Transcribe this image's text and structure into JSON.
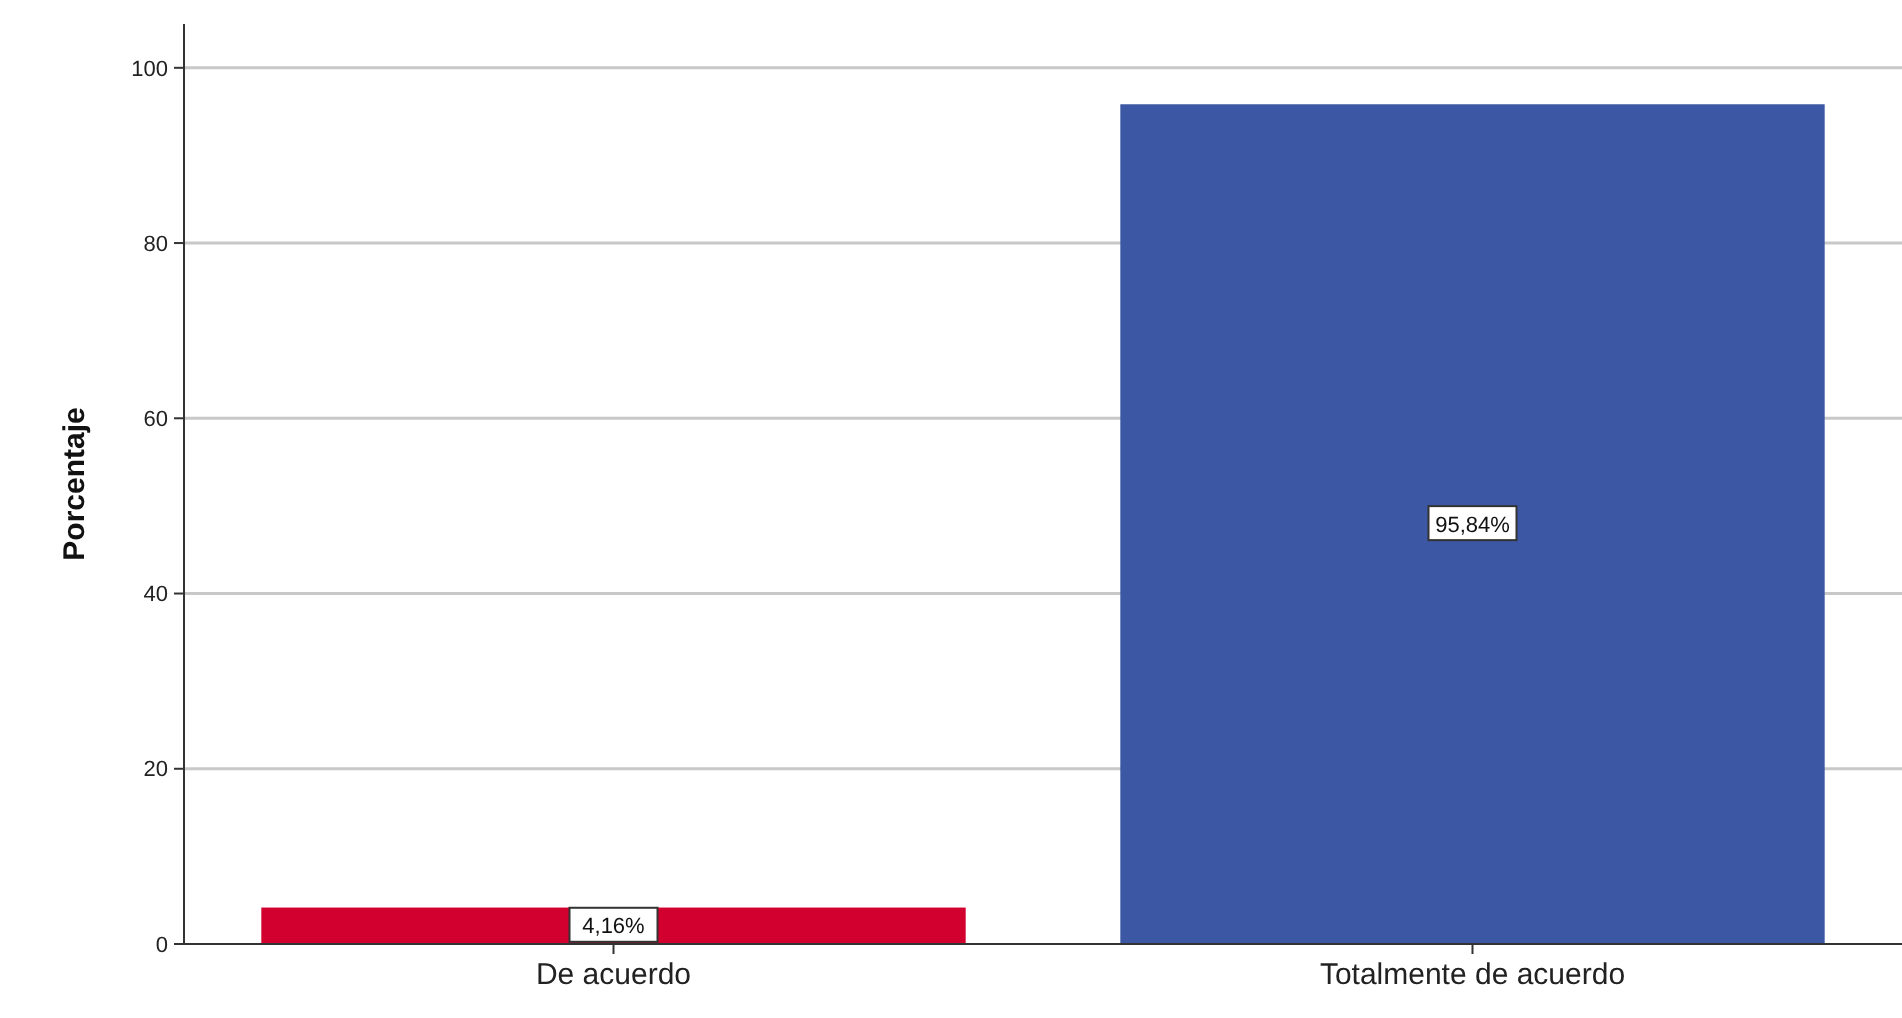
{
  "chart_data": {
    "type": "bar",
    "ylabel": "Porcentaje",
    "categories": [
      "De acuerdo",
      "Totalmente de acuerdo"
    ],
    "values": [
      4.16,
      95.84
    ],
    "colors": [
      "#d2002e",
      "#3c58a4"
    ],
    "value_labels": [
      "4,16%",
      "95,84%"
    ],
    "ylim": [
      0,
      105
    ],
    "yticks": [
      0,
      20,
      40,
      60,
      80,
      100
    ],
    "grid": "y"
  }
}
